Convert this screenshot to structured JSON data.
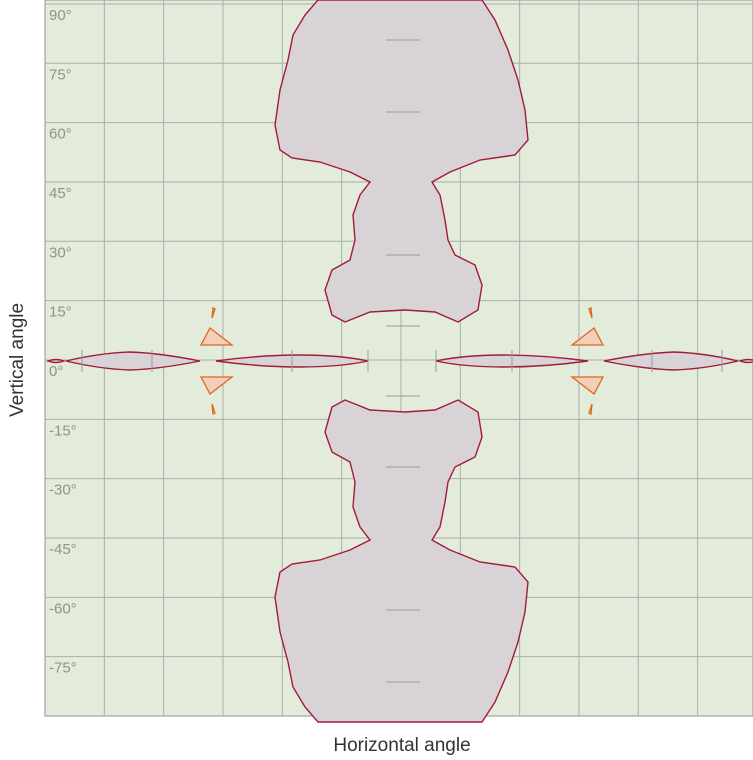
{
  "chart_data": {
    "type": "region",
    "y_label": "Vertical angle",
    "x_label": "Horizontal angle",
    "xlim": [
      -90,
      89
    ],
    "ylim": [
      -90,
      91
    ],
    "xticks": [
      -75,
      -60,
      -45,
      -30,
      -15,
      0,
      15,
      30,
      45,
      60,
      75
    ],
    "yticks": [
      {
        "value": 90,
        "label": "90°"
      },
      {
        "value": 75,
        "label": "75°"
      },
      {
        "value": 60,
        "label": "60°"
      },
      {
        "value": 45,
        "label": "45°"
      },
      {
        "value": 30,
        "label": "30°"
      },
      {
        "value": 15,
        "label": "15°"
      },
      {
        "value": 0,
        "label": "0°"
      },
      {
        "value": -15,
        "label": "-15°"
      },
      {
        "value": -30,
        "label": "-30°"
      },
      {
        "value": -45,
        "label": "-45°"
      },
      {
        "value": -60,
        "label": "-60°"
      },
      {
        "value": -75,
        "label": "-75°"
      }
    ],
    "grid": true
  }
}
